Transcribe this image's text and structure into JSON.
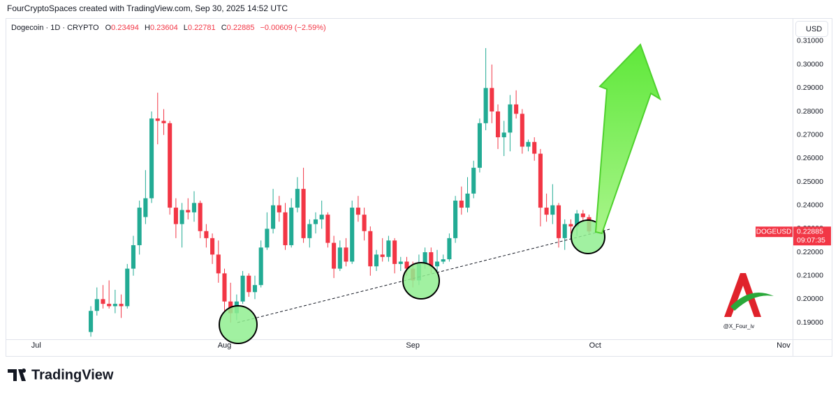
{
  "header": "FourCryptoSpaces created with TradingView.com, Sep 30, 2025 14:52 UTC",
  "chart_data": {
    "type": "candlestick",
    "title": "Dogecoin · 1D · CRYPTO",
    "ohlc_labels": {
      "open": "O",
      "high": "H",
      "low": "L",
      "close": "C"
    },
    "change": "−0.00609 (−2.59%)",
    "currency": "USD",
    "symbol": "DOGEUSD",
    "countdown": "09:07:35",
    "up_color": "#22ab94",
    "down_color": "#f23645",
    "grid": false,
    "x": [
      0,
      1,
      2,
      3,
      4,
      5,
      6,
      7,
      8,
      9,
      10,
      11,
      12,
      13,
      14,
      15,
      16,
      17,
      18,
      19,
      20,
      21,
      22,
      23,
      24,
      25,
      26,
      27,
      28,
      29,
      30,
      31,
      32,
      33,
      34,
      35,
      36,
      37,
      38,
      39,
      40,
      41,
      42,
      43,
      44,
      45,
      46,
      47,
      48,
      49,
      50,
      51,
      52,
      53,
      54,
      55,
      56,
      57,
      58,
      59,
      60,
      61,
      62,
      63,
      64,
      65,
      66,
      67,
      68,
      69,
      70,
      71,
      72,
      73,
      74,
      75,
      76,
      77,
      78,
      79,
      80,
      81,
      82
    ],
    "open": [
      0.186,
      0.195,
      0.2,
      0.198,
      0.197,
      0.198,
      0.197,
      0.213,
      0.223,
      0.235,
      0.243,
      0.277,
      0.276,
      0.275,
      0.239,
      0.232,
      0.238,
      0.237,
      0.241,
      0.229,
      0.226,
      0.219,
      0.211,
      0.199,
      0.194,
      0.199,
      0.21,
      0.203,
      0.206,
      0.222,
      0.23,
      0.24,
      0.237,
      0.223,
      0.239,
      0.247,
      0.226,
      0.232,
      0.234,
      0.236,
      0.224,
      0.213,
      0.222,
      0.216,
      0.239,
      0.236,
      0.229,
      0.214,
      0.219,
      0.218,
      0.225,
      0.215,
      0.216,
      0.213,
      0.208,
      0.215,
      0.22,
      0.214,
      0.216,
      0.217,
      0.226,
      0.242,
      0.239,
      0.245,
      0.256,
      0.275,
      0.29,
      0.28,
      0.269,
      0.271,
      0.283,
      0.279,
      0.265,
      0.267,
      0.262,
      0.239,
      0.236,
      0.24,
      0.226,
      0.232,
      0.231,
      0.2365,
      0.23494
    ],
    "high": [
      0.197,
      0.205,
      0.206,
      0.208,
      0.204,
      0.202,
      0.215,
      0.227,
      0.242,
      0.255,
      0.28,
      0.288,
      0.281,
      0.276,
      0.243,
      0.241,
      0.243,
      0.246,
      0.242,
      0.232,
      0.228,
      0.225,
      0.213,
      0.207,
      0.202,
      0.212,
      0.211,
      0.21,
      0.225,
      0.237,
      0.247,
      0.244,
      0.241,
      0.243,
      0.252,
      0.256,
      0.234,
      0.237,
      0.242,
      0.237,
      0.227,
      0.225,
      0.226,
      0.242,
      0.244,
      0.239,
      0.231,
      0.221,
      0.226,
      0.227,
      0.226,
      0.218,
      0.218,
      0.216,
      0.219,
      0.222,
      0.222,
      0.221,
      0.219,
      0.228,
      0.244,
      0.248,
      0.252,
      0.259,
      0.277,
      0.307,
      0.3,
      0.283,
      0.276,
      0.287,
      0.289,
      0.281,
      0.268,
      0.269,
      0.264,
      0.245,
      0.249,
      0.241,
      0.234,
      0.234,
      0.238,
      0.238,
      0.23604
    ],
    "low": [
      0.184,
      0.193,
      0.196,
      0.196,
      0.194,
      0.192,
      0.196,
      0.21,
      0.219,
      0.232,
      0.241,
      0.266,
      0.27,
      0.236,
      0.226,
      0.222,
      0.234,
      0.233,
      0.226,
      0.222,
      0.215,
      0.207,
      0.195,
      0.19,
      0.191,
      0.198,
      0.201,
      0.2,
      0.205,
      0.221,
      0.228,
      0.233,
      0.221,
      0.222,
      0.237,
      0.224,
      0.222,
      0.228,
      0.23,
      0.222,
      0.209,
      0.212,
      0.214,
      0.215,
      0.233,
      0.225,
      0.21,
      0.212,
      0.216,
      0.216,
      0.211,
      0.212,
      0.21,
      0.205,
      0.206,
      0.213,
      0.211,
      0.212,
      0.215,
      0.216,
      0.224,
      0.236,
      0.237,
      0.243,
      0.254,
      0.272,
      0.275,
      0.264,
      0.261,
      0.263,
      0.277,
      0.262,
      0.263,
      0.259,
      0.231,
      0.233,
      0.232,
      0.222,
      0.221,
      0.228,
      0.227,
      0.233,
      0.22781
    ],
    "close": [
      0.195,
      0.2,
      0.198,
      0.197,
      0.198,
      0.197,
      0.213,
      0.223,
      0.239,
      0.243,
      0.277,
      0.276,
      0.275,
      0.239,
      0.232,
      0.238,
      0.237,
      0.241,
      0.229,
      0.226,
      0.219,
      0.211,
      0.199,
      0.194,
      0.199,
      0.21,
      0.203,
      0.206,
      0.222,
      0.23,
      0.24,
      0.237,
      0.223,
      0.239,
      0.247,
      0.226,
      0.232,
      0.234,
      0.236,
      0.224,
      0.213,
      0.222,
      0.216,
      0.239,
      0.236,
      0.229,
      0.214,
      0.219,
      0.218,
      0.225,
      0.215,
      0.216,
      0.213,
      0.208,
      0.215,
      0.22,
      0.214,
      0.216,
      0.217,
      0.226,
      0.242,
      0.239,
      0.245,
      0.256,
      0.275,
      0.29,
      0.28,
      0.269,
      0.271,
      0.283,
      0.279,
      0.265,
      0.267,
      0.262,
      0.239,
      0.236,
      0.24,
      0.226,
      0.232,
      0.231,
      0.2365,
      0.23494,
      0.22885
    ],
    "xlim": [
      -13.8,
      115.5
    ],
    "xticks": [
      {
        "value": -9,
        "label": "Jul"
      },
      {
        "value": 22,
        "label": "Aug"
      },
      {
        "value": 53,
        "label": "Sep"
      },
      {
        "value": 83,
        "label": "Oct"
      },
      {
        "value": 114,
        "label": "Nov"
      }
    ],
    "ylim": [
      0.1829,
      0.3186
    ],
    "yticks": [
      {
        "value": 0.19,
        "label": "0.19000"
      },
      {
        "value": 0.2,
        "label": "0.20000"
      },
      {
        "value": 0.21,
        "label": "0.21000"
      },
      {
        "value": 0.22,
        "label": "0.22000"
      },
      {
        "value": 0.23,
        "label": "0.23000"
      },
      {
        "value": 0.24,
        "label": "0.24000"
      },
      {
        "value": 0.25,
        "label": "0.25000"
      },
      {
        "value": 0.26,
        "label": "0.26000"
      },
      {
        "value": 0.27,
        "label": "0.27000"
      },
      {
        "value": 0.28,
        "label": "0.28000"
      },
      {
        "value": 0.29,
        "label": "0.29000"
      },
      {
        "value": 0.3,
        "label": "0.30000"
      },
      {
        "value": 0.31,
        "label": "0.31000"
      }
    ]
  },
  "watermark": "@X_Four_iv",
  "footer": "TradingView"
}
